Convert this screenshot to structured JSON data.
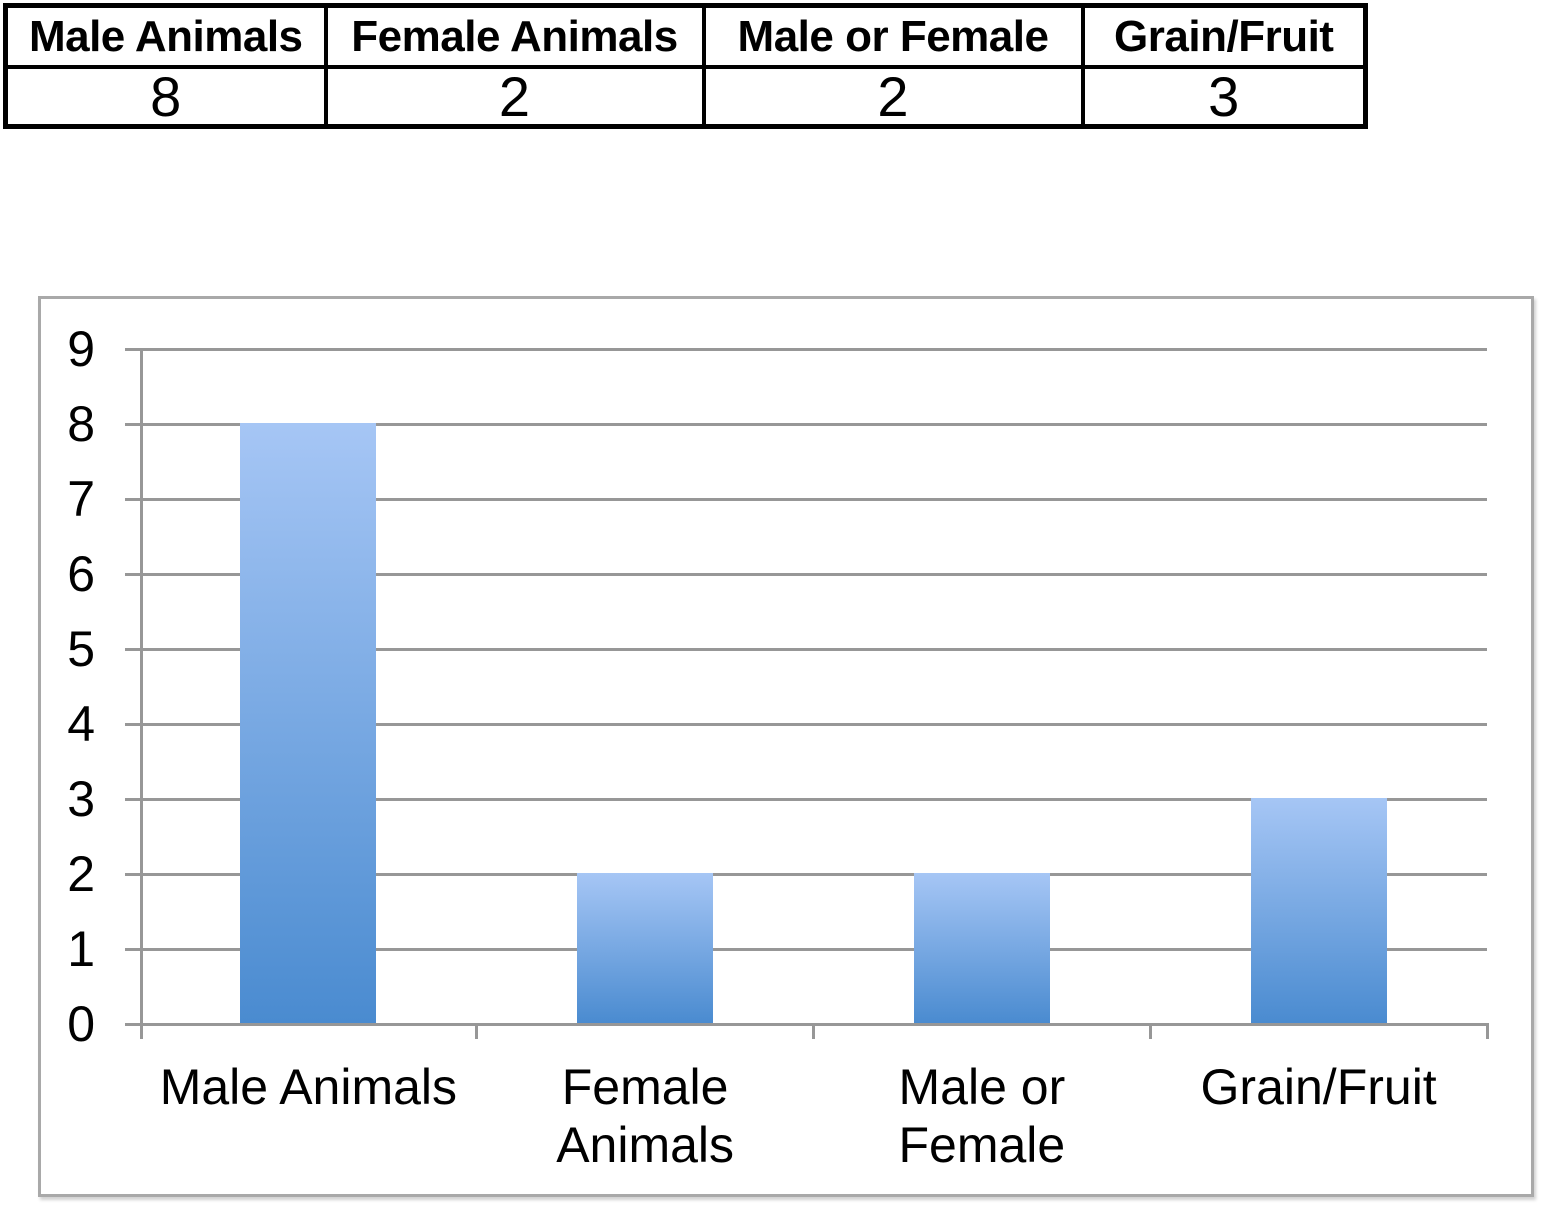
{
  "table": {
    "columns": [
      {
        "header": "Male Animals",
        "value": "8"
      },
      {
        "header": "Female Animals",
        "value": "2"
      },
      {
        "header": "Male or Female",
        "value": "2"
      },
      {
        "header": "Grain/Fruit",
        "value": "3"
      }
    ]
  },
  "chart_data": {
    "type": "bar",
    "title": "",
    "xlabel": "",
    "ylabel": "",
    "categories": [
      "Male Animals",
      "Female Animals",
      "Male or Female",
      "Grain/Fruit"
    ],
    "category_label_lines": [
      [
        "Male Animals"
      ],
      [
        "Female",
        "Animals"
      ],
      [
        "Male or",
        "Female"
      ],
      [
        "Grain/Fruit"
      ]
    ],
    "values": [
      8,
      2,
      2,
      3
    ],
    "ylim": [
      0,
      9
    ],
    "ytick_step": 1,
    "ytick_labels": [
      "0",
      "1",
      "2",
      "3",
      "4",
      "5",
      "6",
      "7",
      "8",
      "9"
    ],
    "grid": true,
    "legend": false,
    "colors": {
      "bar_gradient_top": "#a6c6f5",
      "bar_gradient_bottom": "#4a8bd0",
      "gridline": "#979797",
      "chart_border": "#a9a9a9",
      "text": "#000000"
    }
  }
}
